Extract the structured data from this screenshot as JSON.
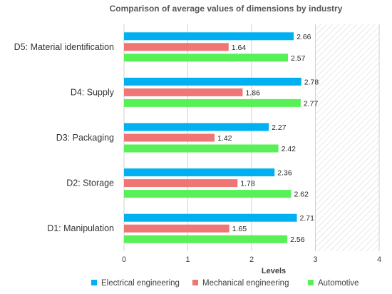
{
  "chart_data": {
    "type": "bar",
    "orientation": "horizontal",
    "title": "Comparison of average values of dimensions by industry",
    "xlabel": "Levels",
    "ylabel": "",
    "xlim": [
      0,
      4
    ],
    "xticks": [
      "0",
      "1",
      "2",
      "3",
      "4"
    ],
    "categories": [
      "D5: Material identification",
      "D4: Supply",
      "D3: Packaging",
      "D2: Storage",
      "D1: Manipulation"
    ],
    "series": [
      {
        "name": "Electrical engineering",
        "color": "#00b0f0",
        "values": [
          2.66,
          2.78,
          2.27,
          2.36,
          2.71
        ],
        "labels": [
          "2.66",
          "2.78",
          "2.27",
          "2.36",
          "2.71"
        ]
      },
      {
        "name": "Mechanical engineering",
        "color": "#f07575",
        "values": [
          1.64,
          1.86,
          1.42,
          1.78,
          1.65
        ],
        "labels": [
          "1.64",
          "1.86",
          "1.42",
          "1.78",
          "1.65"
        ]
      },
      {
        "name": "Automotive",
        "color": "#57f057",
        "values": [
          2.57,
          2.77,
          2.42,
          2.62,
          2.56
        ],
        "labels": [
          "2.57",
          "2.77",
          "2.42",
          "2.62",
          "2.56"
        ]
      }
    ],
    "grid": "vertical",
    "hatched_region_from": 3,
    "legend_position": "bottom"
  }
}
